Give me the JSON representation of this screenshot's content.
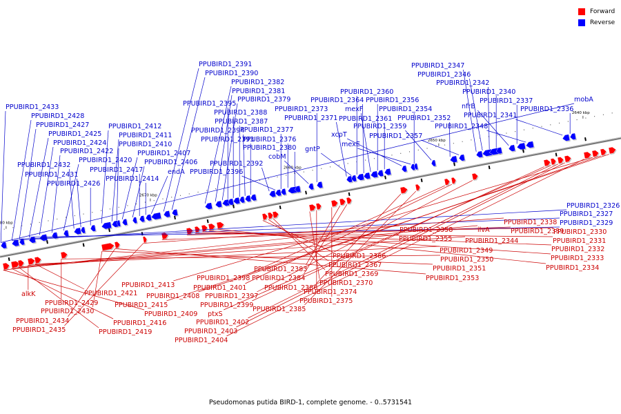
{
  "legend": [
    {
      "label": "Forward",
      "color": "#ff0000"
    },
    {
      "label": "Reverse",
      "color": "#0000ff"
    }
  ],
  "caption": "Pseudomonas putida BIRD-1, complete genome. - 0..5731541",
  "colors": {
    "forward": "#cc0000",
    "forward_gene": "#ff0000",
    "reverse": "#0000cc",
    "reverse_gene": "#0000ff",
    "backbone": "#777777",
    "tick_text": "#000000"
  },
  "ticks": [
    {
      "label": "2640 kbp",
      "kbp": 2640
    },
    {
      "label": "2650 kbp",
      "kbp": 2650
    },
    {
      "label": "2660 kbp",
      "kbp": 2660
    },
    {
      "label": "2670 kbp",
      "kbp": 2670
    },
    {
      "label": "2680 kbp",
      "kbp": 2680
    },
    {
      "label": "2690 kbp",
      "kbp": 2690
    },
    {
      "label": "2700 kbp",
      "kbp": 2700
    },
    {
      "label": "2710 kbp",
      "kbp": 2710
    },
    {
      "label": "2720 kbp",
      "kbp": 2720
    },
    {
      "label": "2730 kbp",
      "kbp": 2730
    },
    {
      "label": "2740 kbp",
      "kbp": 2740
    },
    {
      "label": "2750 kbp",
      "kbp": 2750
    },
    {
      "label": "2760 kbp",
      "kbp": 2760
    },
    {
      "label": "2770 kbp",
      "kbp": 2770
    },
    {
      "label": "2780 kbp",
      "kbp": 2780
    }
  ],
  "reverse_labels": [
    "PPUBIRD1_2433",
    "PPUBIRD1_2428",
    "PPUBIRD1_2427",
    "PPUBIRD1_2425",
    "PPUBIRD1_2424",
    "PPUBIRD1_2422",
    "PPUBIRD1_2420",
    "PPUBIRD1_2432",
    "PPUBIRD1_2431",
    "PPUBIRD1_2426",
    "PPUBIRD1_2412",
    "PPUBIRD1_2411",
    "PPUBIRD1_2410",
    "PPUBIRD1_2407",
    "PPUBIRD1_2406",
    "PPUBIRD1_2417",
    "PPUBIRD1_2414",
    "endA",
    "PPUBIRD1_2391",
    "PPUBIRD1_2390",
    "PPUBIRD1_2382",
    "PPUBIRD1_2381",
    "PPUBIRD1_2379",
    "PPUBIRD1_2395",
    "PPUBIRD1_2388",
    "PPUBIRD1_2387",
    "PPUBIRD1_2394",
    "PPUBIRD1_2393",
    "PPUBIRD1_2392",
    "PPUBIRD1_2396",
    "PPUBIRD1_2377",
    "PPUBIRD1_2376",
    "PPUBIRD1_2380",
    "cobM",
    "PPUBIRD1_2373",
    "PPUBIRD1_2371",
    "gntP",
    "PPUBIRD1_2360",
    "PPUBIRD1_2364",
    "mexF",
    "PPUBIRD1_2356",
    "PPUBIRD1_2361",
    "xcpT",
    "mexE",
    "PPUBIRD1_2354",
    "PPUBIRD1_2359",
    "PPUBIRD1_2352",
    "PPUBIRD1_2357",
    "PPUBIRD1_2347",
    "PPUBIRD1_2346",
    "PPUBIRD1_2342",
    "PPUBIRD1_2340",
    "nfrB",
    "PPUBIRD1_2337",
    "PPUBIRD1_2348",
    "PPUBIRD1_2341",
    "PPUBIRD1_2336",
    "mobA",
    "PPUBIRD1_2326",
    "PPUBIRD1_2327",
    "PPUBIRD1_2329"
  ],
  "forward_labels": [
    "PPUBIRD1_2358",
    "PPUBIRD1_2355",
    "ilvA",
    "PPUBIRD1_2344",
    "PPUBIRD1_2349",
    "PPUBIRD1_2350",
    "PPUBIRD1_2351",
    "PPUBIRD1_2353",
    "PPUBIRD1_2338",
    "PPUBIRD1_2339",
    "PPUBIRD1_2330",
    "PPUBIRD1_2331",
    "PPUBIRD1_2332",
    "PPUBIRD1_2333",
    "PPUBIRD1_2334",
    "PPUBIRD1_2366",
    "PPUBIRD1_2367",
    "PPUBIRD1_2369",
    "PPUBIRD1_2370",
    "PPUBIRD1_2374",
    "PPUBIRD1_2375",
    "PPUBIRD1_2383",
    "PPUBIRD1_2384",
    "PPUBIRD1_2386",
    "PPUBIRD1_2385",
    "PPUBIRD1_2398",
    "PPUBIRD1_2401",
    "PPUBIRD1_2397",
    "PPUBIRD1_2399",
    "ptxS",
    "PPUBIRD1_2402",
    "PPUBIRD1_2403",
    "PPUBIRD1_2404",
    "PPUBIRD1_2413",
    "PPUBIRD1_2408",
    "PPUBIRD1_2415",
    "PPUBIRD1_2409",
    "PPUBIRD1_2416",
    "PPUBIRD1_2419",
    "alkK",
    "PPUBIRD1_2421",
    "PPUBIRD1_2429",
    "PPUBIRD1_2430",
    "PPUBIRD1_2434",
    "PPUBIRD1_2435"
  ]
}
